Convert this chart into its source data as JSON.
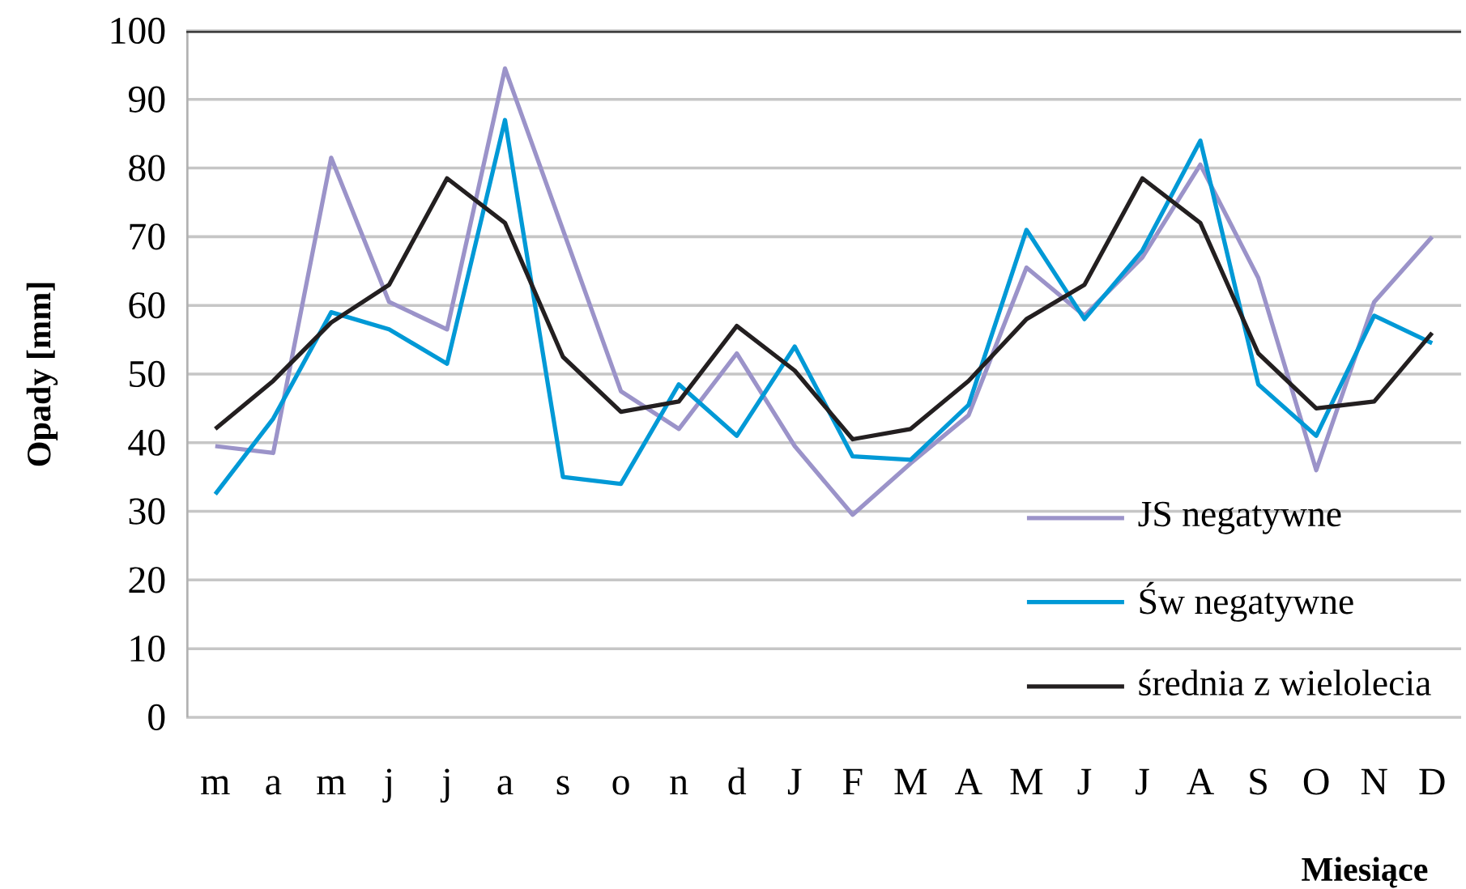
{
  "chart_data": {
    "type": "line",
    "xlabel": "Miesiące",
    "ylabel": "Opady [mm]",
    "categories": [
      "m",
      "a",
      "m",
      "j",
      "j",
      "a",
      "s",
      "o",
      "n",
      "d",
      "J",
      "F",
      "M",
      "A",
      "M",
      "J",
      "J",
      "A",
      "S",
      "O",
      "N",
      "D"
    ],
    "series": [
      {
        "name": "JS negatywne",
        "color": "#9b93c9",
        "values": [
          39.5,
          38.5,
          81.5,
          60.5,
          56.5,
          94.5,
          71,
          47.5,
          42,
          53,
          39.5,
          29.5,
          37,
          44,
          65.5,
          58.5,
          67,
          80.5,
          64,
          36,
          60.5,
          70
        ]
      },
      {
        "name": "Św negatywne",
        "color": "#0099d6",
        "values": [
          32.5,
          43.5,
          59,
          56.5,
          51.5,
          87,
          35,
          34,
          48.5,
          41,
          54,
          38,
          37.5,
          45.5,
          71,
          58,
          68,
          84,
          48.5,
          41,
          58.5,
          54.5
        ]
      },
      {
        "name": "średnia z wielolecia",
        "color": "#231f20",
        "values": [
          42,
          49,
          57.5,
          63,
          78.5,
          72,
          52.5,
          44.5,
          46,
          57,
          50.5,
          40.5,
          42,
          49,
          58,
          63,
          78.5,
          72,
          53,
          45,
          46,
          56
        ]
      }
    ],
    "ylim": [
      0,
      100
    ],
    "yticks": [
      0,
      10,
      20,
      30,
      40,
      50,
      60,
      70,
      80,
      90,
      100
    ],
    "grid": "y",
    "legend": "bottom right",
    "marker": "none",
    "line_style": "solid"
  }
}
